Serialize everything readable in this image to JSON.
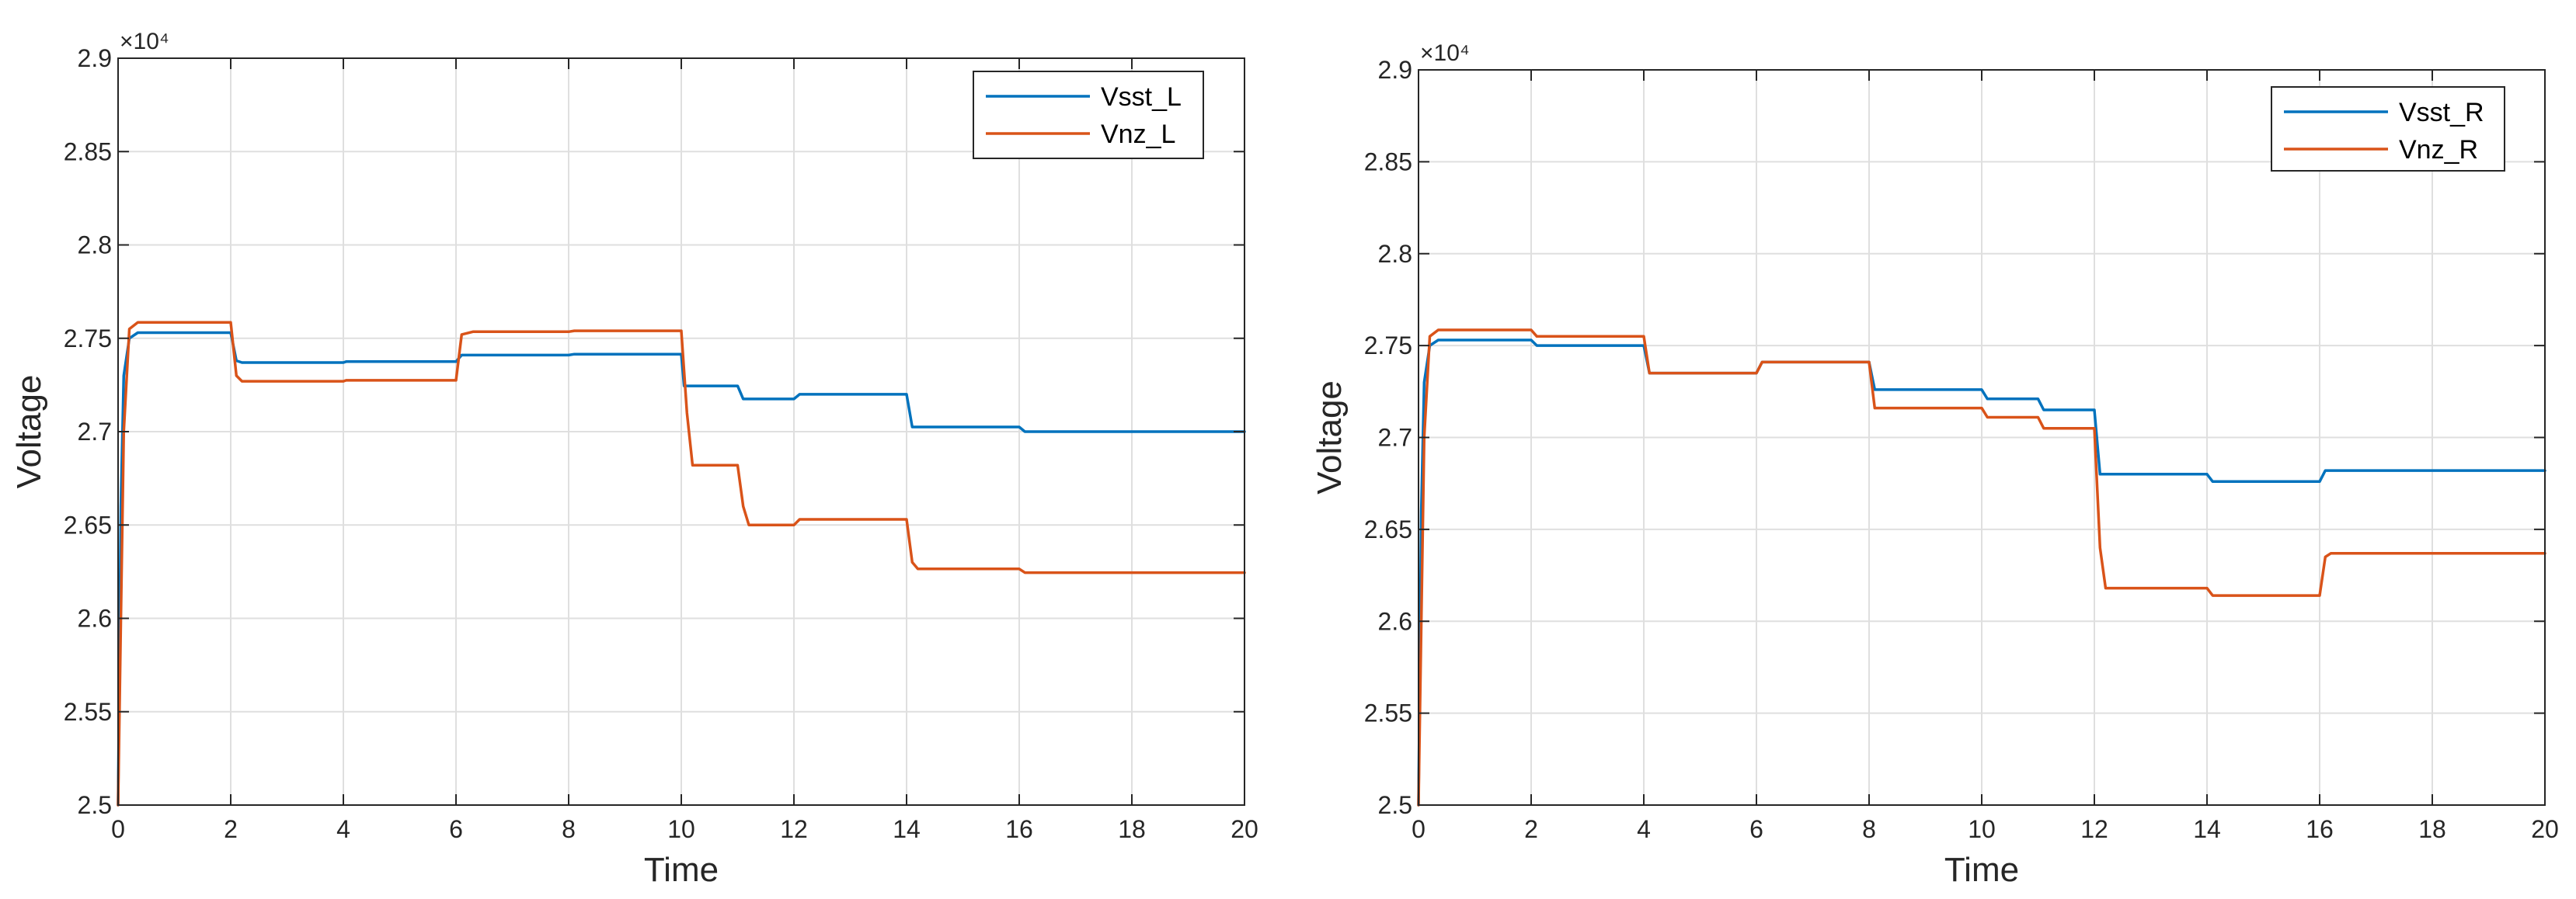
{
  "colors": {
    "series1": "#0072BD",
    "series2": "#D95319"
  },
  "chart_data": [
    {
      "type": "line",
      "title": "",
      "xlabel": "Time",
      "ylabel": "Voltage",
      "xlim": [
        0,
        20
      ],
      "ylim": [
        25000,
        29000
      ],
      "xticks": [
        0,
        2,
        4,
        6,
        8,
        10,
        12,
        14,
        16,
        18,
        20
      ],
      "xtick_labels": [
        "0",
        "2",
        "4",
        "6",
        "8",
        "10",
        "12",
        "14",
        "16",
        "18",
        "20"
      ],
      "yticks": [
        25000,
        25500,
        26000,
        26500,
        27000,
        27500,
        28000,
        28500,
        29000
      ],
      "ytick_labels": [
        "2.5",
        "2.55",
        "2.6",
        "2.65",
        "2.7",
        "2.75",
        "2.8",
        "2.85",
        "2.9"
      ],
      "y_exponent_label": "×10⁴",
      "grid": true,
      "legend_position": "top-right",
      "series": [
        {
          "name": "Vsst_L",
          "color_key": "series1",
          "points": [
            [
              0,
              25000
            ],
            [
              0.05,
              26600
            ],
            [
              0.1,
              27300
            ],
            [
              0.2,
              27500
            ],
            [
              0.35,
              27530
            ],
            [
              2.0,
              27530
            ],
            [
              2.1,
              27380
            ],
            [
              2.2,
              27370
            ],
            [
              4.0,
              27370
            ],
            [
              4.05,
              27375
            ],
            [
              6.0,
              27375
            ],
            [
              6.1,
              27410
            ],
            [
              8.0,
              27410
            ],
            [
              8.1,
              27415
            ],
            [
              10.0,
              27415
            ],
            [
              10.05,
              27245
            ],
            [
              11.0,
              27245
            ],
            [
              11.1,
              27175
            ],
            [
              12.0,
              27175
            ],
            [
              12.1,
              27200
            ],
            [
              14.0,
              27200
            ],
            [
              14.1,
              27025
            ],
            [
              16.0,
              27025
            ],
            [
              16.1,
              27000
            ],
            [
              20,
              27000
            ]
          ]
        },
        {
          "name": "Vnz_L",
          "color_key": "series2",
          "points": [
            [
              0,
              25000
            ],
            [
              0.05,
              26000
            ],
            [
              0.1,
              27000
            ],
            [
              0.2,
              27550
            ],
            [
              0.35,
              27585
            ],
            [
              2.0,
              27585
            ],
            [
              2.1,
              27300
            ],
            [
              2.2,
              27270
            ],
            [
              4.0,
              27270
            ],
            [
              4.05,
              27275
            ],
            [
              6.0,
              27275
            ],
            [
              6.1,
              27520
            ],
            [
              6.3,
              27535
            ],
            [
              8.0,
              27535
            ],
            [
              8.1,
              27540
            ],
            [
              10.0,
              27540
            ],
            [
              10.1,
              27100
            ],
            [
              10.2,
              26820
            ],
            [
              11.0,
              26820
            ],
            [
              11.1,
              26600
            ],
            [
              11.2,
              26500
            ],
            [
              12.0,
              26500
            ],
            [
              12.1,
              26530
            ],
            [
              14.0,
              26530
            ],
            [
              14.1,
              26300
            ],
            [
              14.2,
              26265
            ],
            [
              16.0,
              26265
            ],
            [
              16.1,
              26245
            ],
            [
              20,
              26245
            ]
          ]
        }
      ]
    },
    {
      "type": "line",
      "title": "",
      "xlabel": "Time",
      "ylabel": "Voltage",
      "xlim": [
        0,
        20
      ],
      "ylim": [
        25000,
        29000
      ],
      "xticks": [
        0,
        2,
        4,
        6,
        8,
        10,
        12,
        14,
        16,
        18,
        20
      ],
      "xtick_labels": [
        "0",
        "2",
        "4",
        "6",
        "8",
        "10",
        "12",
        "14",
        "16",
        "18",
        "20"
      ],
      "yticks": [
        25000,
        25500,
        26000,
        26500,
        27000,
        27500,
        28000,
        28500,
        29000
      ],
      "ytick_labels": [
        "2.5",
        "2.55",
        "2.6",
        "2.65",
        "2.7",
        "2.75",
        "2.8",
        "2.85",
        "2.9"
      ],
      "y_exponent_label": "×10⁴",
      "grid": true,
      "legend_position": "top-right",
      "series": [
        {
          "name": "Vsst_R",
          "color_key": "series1",
          "points": [
            [
              0,
              25000
            ],
            [
              0.05,
              26600
            ],
            [
              0.1,
              27300
            ],
            [
              0.2,
              27500
            ],
            [
              0.35,
              27530
            ],
            [
              2.0,
              27530
            ],
            [
              2.1,
              27500
            ],
            [
              4.0,
              27500
            ],
            [
              4.1,
              27350
            ],
            [
              6.0,
              27350
            ],
            [
              6.1,
              27410
            ],
            [
              8.0,
              27410
            ],
            [
              8.1,
              27260
            ],
            [
              10.0,
              27260
            ],
            [
              10.1,
              27210
            ],
            [
              11.0,
              27210
            ],
            [
              11.1,
              27150
            ],
            [
              12.0,
              27150
            ],
            [
              12.1,
              26800
            ],
            [
              14.0,
              26800
            ],
            [
              14.1,
              26760
            ],
            [
              16.0,
              26760
            ],
            [
              16.1,
              26820
            ],
            [
              20,
              26820
            ]
          ]
        },
        {
          "name": "Vnz_R",
          "color_key": "series2",
          "points": [
            [
              0,
              25000
            ],
            [
              0.05,
              26000
            ],
            [
              0.1,
              27000
            ],
            [
              0.2,
              27550
            ],
            [
              0.35,
              27585
            ],
            [
              2.0,
              27585
            ],
            [
              2.1,
              27550
            ],
            [
              4.0,
              27550
            ],
            [
              4.1,
              27350
            ],
            [
              6.0,
              27350
            ],
            [
              6.1,
              27410
            ],
            [
              8.0,
              27410
            ],
            [
              8.1,
              27160
            ],
            [
              10.0,
              27160
            ],
            [
              10.1,
              27110
            ],
            [
              11.0,
              27110
            ],
            [
              11.1,
              27050
            ],
            [
              12.0,
              27050
            ],
            [
              12.1,
              26400
            ],
            [
              12.2,
              26180
            ],
            [
              14.0,
              26180
            ],
            [
              14.1,
              26140
            ],
            [
              16.0,
              26140
            ],
            [
              16.1,
              26350
            ],
            [
              16.2,
              26370
            ],
            [
              20,
              26370
            ]
          ]
        }
      ]
    }
  ]
}
